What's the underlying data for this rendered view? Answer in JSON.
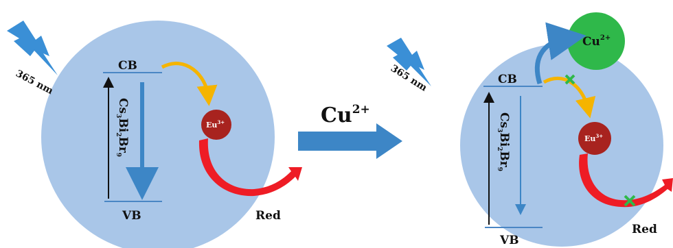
{
  "left_panel": {
    "excitation": "365 nm",
    "cb": "CB",
    "vb": "VB",
    "material": {
      "parts": [
        [
          "Cs",
          "3"
        ],
        [
          "Bi",
          "2"
        ],
        [
          "Br",
          "9"
        ]
      ]
    },
    "ion": {
      "base": "Eu",
      "charge": "3+"
    },
    "emission": "Red"
  },
  "middle_arrow": {
    "base": "Cu",
    "charge": "2+"
  },
  "right_panel": {
    "excitation": "365 nm",
    "cb": "CB",
    "vb": "VB",
    "material": {
      "parts": [
        [
          "Cs",
          "3"
        ],
        [
          "Bi",
          "2"
        ],
        [
          "Br",
          "9"
        ]
      ]
    },
    "ion": {
      "base": "Eu",
      "charge": "3+"
    },
    "quencher": {
      "base": "Cu",
      "charge": "2+"
    },
    "emission": "Red"
  },
  "colors": {
    "particle": "#a9c6e8",
    "lightning": "#3a8fd6",
    "arrow_blue": "#3d86c6",
    "band_line": "#4a86c4",
    "transfer_arrow": "#f5b400",
    "emission_arrow": "#ee1c25",
    "eu_sphere": "#a8231f",
    "cu_sphere": "#2fb84a",
    "block_mark": "#2fb84a"
  }
}
